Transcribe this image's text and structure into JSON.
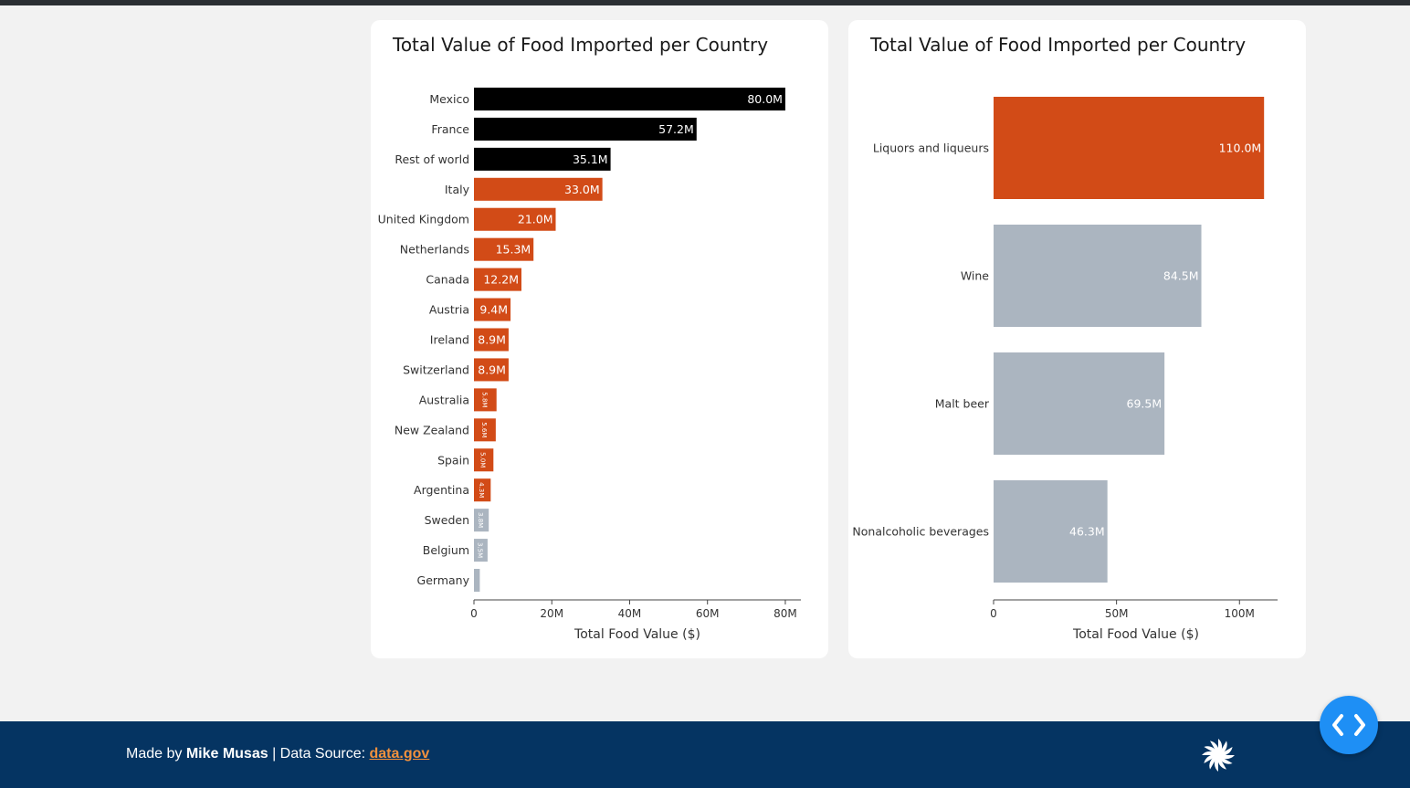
{
  "footer": {
    "made_by_prefix": "Made by ",
    "author": "Mike Musas",
    "separator": " | Data Source: ",
    "source_link": "data.gov"
  },
  "icons": {
    "logo": "pinwheel-logo-icon",
    "code_toggle": "code-toggle-icon"
  },
  "colors": {
    "highlight": "#d24b17",
    "top": "#000000",
    "muted": "#abb5c0",
    "footer_bg": "#053462",
    "link": "#f2913d"
  },
  "chart_data": [
    {
      "type": "bar",
      "orientation": "horizontal",
      "title": "Total Value of Food Imported per Country",
      "xlabel": "Total Food Value ($)",
      "ylabel": "",
      "categories": [
        "Mexico",
        "France",
        "Rest of world",
        "Italy",
        "United Kingdom",
        "Netherlands",
        "Canada",
        "Austria",
        "Ireland",
        "Switzerland",
        "Australia",
        "New Zealand",
        "Spain",
        "Argentina",
        "Sweden",
        "Belgium",
        "Germany"
      ],
      "values": [
        80.0,
        57.2,
        35.1,
        33.0,
        21.0,
        15.3,
        12.2,
        9.4,
        8.9,
        8.9,
        5.8,
        5.6,
        5.0,
        4.3,
        3.8,
        3.5,
        1.5
      ],
      "value_unit": "M",
      "labels": [
        "80.0M",
        "57.2M",
        "35.1M",
        "33.0M",
        "21.0M",
        "15.3M",
        "12.2M",
        "9.4M",
        "8.9M",
        "8.9M",
        "5.8M",
        "5.6M",
        "5.0M",
        "4.3M",
        "3.8M",
        "3.5M",
        ""
      ],
      "colors": [
        "#000000",
        "#000000",
        "#000000",
        "#d24b17",
        "#d24b17",
        "#d24b17",
        "#d24b17",
        "#d24b17",
        "#d24b17",
        "#d24b17",
        "#d24b17",
        "#d24b17",
        "#d24b17",
        "#d24b17",
        "#abb5c0",
        "#abb5c0",
        "#abb5c0"
      ],
      "xticks": [
        0,
        20,
        40,
        60,
        80
      ],
      "xtick_labels": [
        "0",
        "20M",
        "40M",
        "60M",
        "80M"
      ],
      "xlim": [
        0,
        84
      ],
      "grid": false
    },
    {
      "type": "bar",
      "orientation": "horizontal",
      "title": "Total Value of Food Imported per Country",
      "xlabel": "Total Food Value ($)",
      "ylabel": "",
      "categories": [
        "Liquors and liqueurs",
        "Wine",
        "Malt beer",
        "Nonalcoholic beverages"
      ],
      "values": [
        110.0,
        84.5,
        69.5,
        46.3
      ],
      "value_unit": "M",
      "labels": [
        "110.0M",
        "84.5M",
        "69.5M",
        "46.3M"
      ],
      "colors": [
        "#d24b17",
        "#abb5c0",
        "#abb5c0",
        "#abb5c0"
      ],
      "xticks": [
        0,
        50,
        100
      ],
      "xtick_labels": [
        "0",
        "50M",
        "100M"
      ],
      "xlim": [
        0,
        115.5
      ],
      "grid": false
    }
  ]
}
